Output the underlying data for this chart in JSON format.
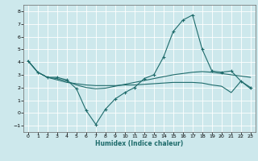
{
  "xlabel": "Humidex (Indice chaleur)",
  "bg_color": "#cde8ec",
  "grid_color": "#ffffff",
  "line_color": "#1e6b6b",
  "xlim": [
    -0.5,
    23.5
  ],
  "ylim": [
    -1.5,
    8.5
  ],
  "xticks": [
    0,
    1,
    2,
    3,
    4,
    5,
    6,
    7,
    8,
    9,
    10,
    11,
    12,
    13,
    14,
    15,
    16,
    17,
    18,
    19,
    20,
    21,
    22,
    23
  ],
  "yticks": [
    -1,
    0,
    1,
    2,
    3,
    4,
    5,
    6,
    7,
    8
  ],
  "series1_x": [
    0,
    1,
    2,
    3,
    4,
    5,
    6,
    7,
    8,
    9,
    10,
    11,
    12,
    13,
    14,
    15,
    16,
    17,
    18,
    19,
    20,
    21,
    22,
    23
  ],
  "series1_y": [
    4.1,
    3.2,
    2.8,
    2.8,
    2.6,
    1.9,
    0.2,
    -0.9,
    0.3,
    1.1,
    1.6,
    2.0,
    2.7,
    3.0,
    4.4,
    6.4,
    7.3,
    7.7,
    5.0,
    3.3,
    3.2,
    3.3,
    2.5,
    2.0
  ],
  "series2_x": [
    0,
    1,
    2,
    3,
    4,
    5,
    6,
    7,
    8,
    9,
    10,
    11,
    12,
    13,
    14,
    15,
    16,
    17,
    18,
    19,
    20,
    21,
    22,
    23
  ],
  "series2_y": [
    4.1,
    3.2,
    2.8,
    2.7,
    2.5,
    2.2,
    2.0,
    1.9,
    1.95,
    2.1,
    2.25,
    2.4,
    2.55,
    2.7,
    2.85,
    3.0,
    3.1,
    3.2,
    3.25,
    3.2,
    3.1,
    3.0,
    2.9,
    2.8
  ],
  "series3_x": [
    0,
    1,
    2,
    3,
    4,
    5,
    6,
    7,
    8,
    9,
    10,
    11,
    12,
    13,
    14,
    15,
    16,
    17,
    18,
    19,
    20,
    21,
    22,
    23
  ],
  "series3_y": [
    4.1,
    3.2,
    2.8,
    2.6,
    2.4,
    2.3,
    2.2,
    2.15,
    2.15,
    2.15,
    2.2,
    2.2,
    2.25,
    2.3,
    2.35,
    2.4,
    2.4,
    2.4,
    2.35,
    2.2,
    2.1,
    1.6,
    2.5,
    1.9
  ]
}
